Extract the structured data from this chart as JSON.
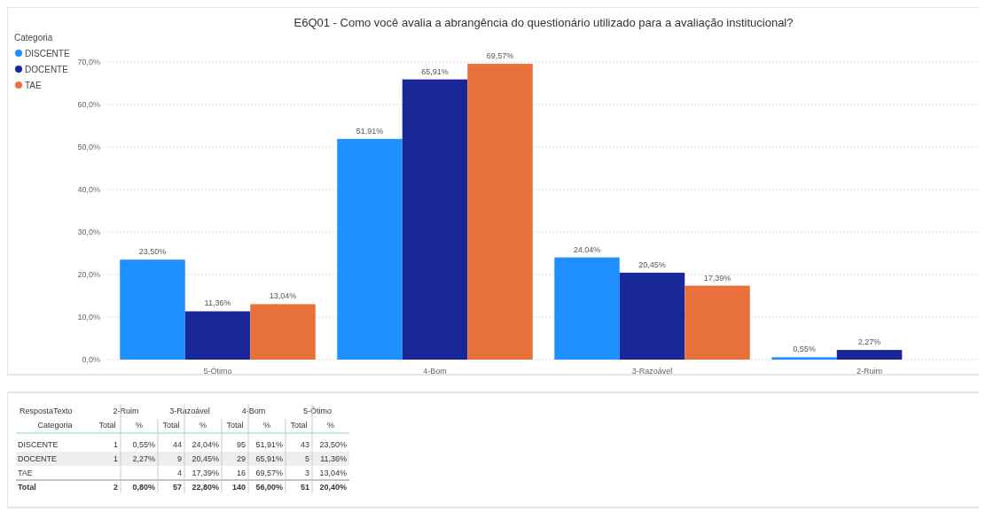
{
  "chart_data": [
    {
      "type": "bar",
      "title": "E6Q01 - Como você avalia a abrangência do questionário utilizado para a avaliação institucional?",
      "legend_title": "Categoria",
      "legend": "left",
      "grid": "y",
      "categories": [
        "5-Ótimo",
        "4-Bom",
        "3-Razoável",
        "2-Ruim"
      ],
      "ylim": [
        0,
        70
      ],
      "yticks": [
        {
          "value": 0,
          "label": "0,0%"
        },
        {
          "value": 10,
          "label": "10,0%"
        },
        {
          "value": 20,
          "label": "20,0%"
        },
        {
          "value": 30,
          "label": "30,0%"
        },
        {
          "value": 40,
          "label": "40,0%"
        },
        {
          "value": 50,
          "label": "50,0%"
        },
        {
          "value": 60,
          "label": "60,0%"
        },
        {
          "value": 70,
          "label": "70,0%"
        }
      ],
      "series": [
        {
          "name": "DISCENTE",
          "color": "#1e90ff",
          "values": [
            23.5,
            51.91,
            24.04,
            0.55
          ],
          "value_labels": [
            "23,50%",
            "51,91%",
            "24,04%",
            "0,55%"
          ]
        },
        {
          "name": "DOCENTE",
          "color": "#1a2799",
          "values": [
            11.36,
            65.91,
            20.45,
            2.27
          ],
          "value_labels": [
            "11,36%",
            "65,91%",
            "20,45%",
            "2,27%"
          ]
        },
        {
          "name": "TAE",
          "color": "#e8703a",
          "values": [
            13.04,
            69.57,
            17.39,
            null
          ],
          "value_labels": [
            "13,04%",
            "69,57%",
            "17,39%",
            null
          ]
        }
      ]
    },
    {
      "type": "other",
      "xlabel": "RespostaTexto",
      "ylabel": "Categoria",
      "annotations": [
        "2-Ruim",
        "3-Razoável",
        "4-Bom",
        "5-Ótimo"
      ],
      "categories": [
        "Total",
        "%",
        "Total",
        "%",
        "Total",
        "%",
        "Total",
        "%"
      ],
      "y_categories": [
        "DISCENTE",
        "DOCENTE",
        "TAE",
        "Total"
      ],
      "cell_labels": [
        [
          "1",
          "0,55%",
          "44",
          "24,04%",
          "95",
          "51,91%",
          "43",
          "23,50%"
        ],
        [
          "1",
          "2,27%",
          "9",
          "20,45%",
          "29",
          "65,91%",
          "5",
          "11,36%"
        ],
        [
          null,
          null,
          "4",
          "17,39%",
          "16",
          "69,57%",
          "3",
          "13,04%"
        ],
        [
          "2",
          "0,80%",
          "57",
          "22,80%",
          "140",
          "56,00%",
          "51",
          "20,40%"
        ]
      ]
    }
  ]
}
